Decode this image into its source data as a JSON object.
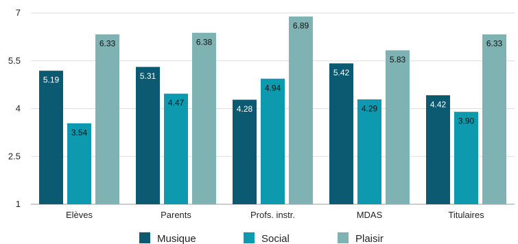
{
  "chart_data": {
    "type": "bar",
    "categories": [
      "Elèves",
      "Parents",
      "Profs. instr.",
      "MDAS",
      "Titulaires"
    ],
    "series": [
      {
        "name": "Musique",
        "values": [
          5.19,
          5.31,
          4.28,
          5.42,
          4.42
        ],
        "labels": [
          "5.19",
          "5.31",
          "4.28",
          "5.42",
          "4.42"
        ],
        "color": "#0b5a72",
        "label_color": "#ffffff"
      },
      {
        "name": "Social",
        "values": [
          3.54,
          4.47,
          4.94,
          4.29,
          3.9
        ],
        "labels": [
          "3.54",
          "4.47",
          "4.94",
          "4.29",
          "3.90"
        ],
        "color": "#0e9aae",
        "label_color": "#111111"
      },
      {
        "name": "Plaisir",
        "values": [
          6.33,
          6.38,
          6.89,
          5.83,
          6.33
        ],
        "labels": [
          "6.33",
          "6.38",
          "6.89",
          "5.83",
          "6.33"
        ],
        "color": "#7fb2b3",
        "label_color": "#111111"
      }
    ],
    "ylim": [
      1,
      7
    ],
    "yticks": [
      "1",
      "2.5",
      "4",
      "5.5",
      "7"
    ],
    "grid": true,
    "legend_position": "bottom",
    "title": "",
    "xlabel": "",
    "ylabel": ""
  }
}
